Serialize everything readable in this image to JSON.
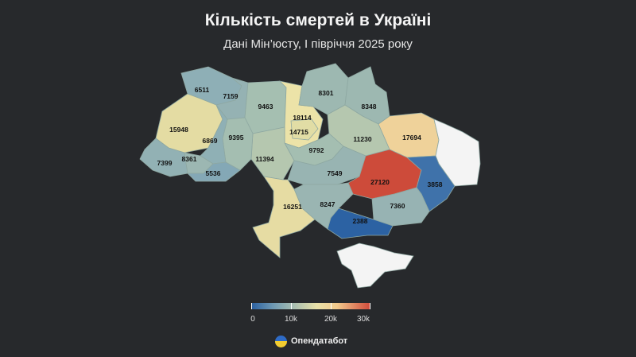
{
  "header": {
    "title": "Кількість смертей в Україні",
    "subtitle": "Дані Мін’юсту, І півріччя 2025 року"
  },
  "map": {
    "regions": [
      {
        "name": "Волинська",
        "value": 6511,
        "color": "#8eafb6"
      },
      {
        "name": "Рівненська",
        "value": 7159,
        "color": "#95b2b3"
      },
      {
        "name": "Житомирська",
        "value": 9463,
        "color": "#a5bfb1"
      },
      {
        "name": "Київська",
        "value": 18114,
        "color": "#ece3a8"
      },
      {
        "name": "Київ",
        "value": 14715,
        "color": "#e1dda5"
      },
      {
        "name": "Чернігівська",
        "value": 8301,
        "color": "#9db8b1"
      },
      {
        "name": "Сумська",
        "value": 8348,
        "color": "#9db8b1"
      },
      {
        "name": "Харківська",
        "value": 17694,
        "color": "#efd29a"
      },
      {
        "name": "Луганська",
        "value": null,
        "color": "#f4f4f4"
      },
      {
        "name": "Полтавська",
        "value": 11230,
        "color": "#b5c7af"
      },
      {
        "name": "Черкаська",
        "value": 9792,
        "color": "#a4beb1"
      },
      {
        "name": "Вінницька",
        "value": 11394,
        "color": "#b5c7af"
      },
      {
        "name": "Хмельницька",
        "value": 9395,
        "color": "#a4beb1"
      },
      {
        "name": "Львівська",
        "value": 15948,
        "color": "#e4dca3"
      },
      {
        "name": "Тернопільська",
        "value": 6869,
        "color": "#8fb0b5"
      },
      {
        "name": "Закарпатська",
        "value": 7399,
        "color": "#92b1b4"
      },
      {
        "name": "Івано-Франківська",
        "value": 8361,
        "color": "#9cb7b2"
      },
      {
        "name": "Чернівецька",
        "value": 5536,
        "color": "#84a8b6"
      },
      {
        "name": "Кіровоградська",
        "value": 7549,
        "color": "#98b4b2"
      },
      {
        "name": "Дніпропетровська",
        "value": 27120,
        "color": "#cd4b3a"
      },
      {
        "name": "Донецька",
        "value": 3858,
        "color": "#3f72aa"
      },
      {
        "name": "Запорізька",
        "value": 7360,
        "color": "#97b3b3"
      },
      {
        "name": "Херсонська",
        "value": 2388,
        "color": "#2c62a3"
      },
      {
        "name": "Миколаївська",
        "value": 8247,
        "color": "#9ab5b2"
      },
      {
        "name": "Одеська",
        "value": 16251,
        "color": "#e6dca3"
      },
      {
        "name": "АР Крим",
        "value": null,
        "color": "#f4f4f4"
      }
    ]
  },
  "legend": {
    "min": 0,
    "max": 30000,
    "tick_labels": [
      "0",
      "10k",
      "20k",
      "30k"
    ],
    "colors": [
      "#2a5fa0",
      "#9fb9b2",
      "#e8e0a8",
      "#d0493a"
    ]
  },
  "brand": {
    "name": "Опендатабот"
  }
}
